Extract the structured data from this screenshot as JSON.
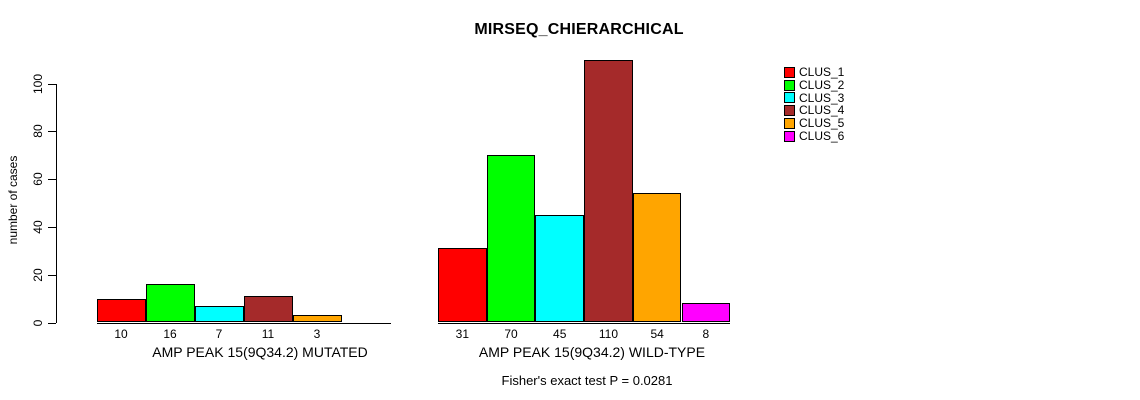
{
  "chart_data": {
    "type": "bar",
    "title": "MIRSEQ_CHIERARCHICAL",
    "xlabel": "",
    "ylabel": "number of cases",
    "ylim": [
      0,
      110
    ],
    "yticks": [
      0,
      20,
      40,
      60,
      80,
      100
    ],
    "grid": false,
    "legend_position": "top-right",
    "categories": [
      "CLUS_1",
      "CLUS_2",
      "CLUS_3",
      "CLUS_4",
      "CLUS_5",
      "CLUS_6"
    ],
    "colors": [
      "#ff0000",
      "#00ff00",
      "#00ffff",
      "#a52a2a",
      "#ffa500",
      "#ff00ff"
    ],
    "series": [
      {
        "name": "AMP PEAK 15(9Q34.2) MUTATED",
        "values": [
          10,
          16,
          7,
          11,
          3,
          null
        ]
      },
      {
        "name": "AMP PEAK 15(9Q34.2) WILD-TYPE",
        "values": [
          31,
          70,
          45,
          110,
          54,
          8
        ]
      }
    ],
    "bar_value_labels": true,
    "annotation": "Fisher's exact test P = 0.0281"
  }
}
